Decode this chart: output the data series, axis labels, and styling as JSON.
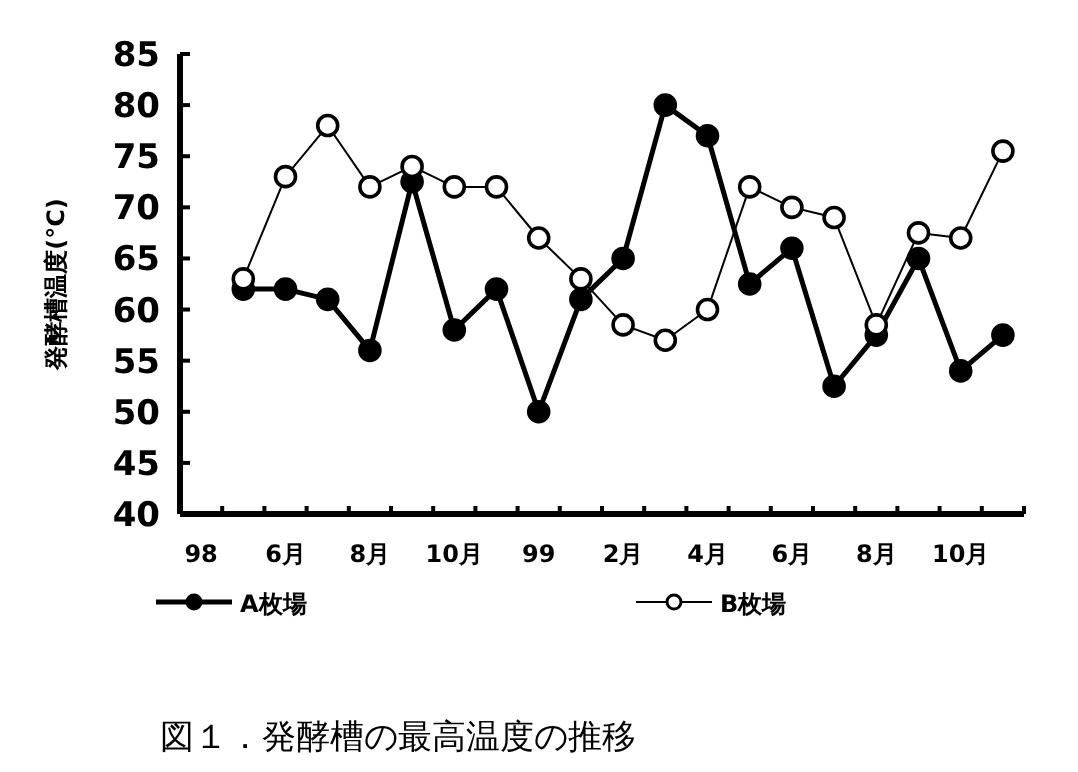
{
  "chart_data": {
    "type": "line",
    "title": "図１．発酵槽の最高温度の推移",
    "ylabel": "発酵槽温度(°C)",
    "categories": [
      "98",
      null,
      "6月",
      null,
      "8月",
      null,
      "10月",
      null,
      "99",
      null,
      "2月",
      null,
      "4月",
      null,
      "6月",
      null,
      "8月",
      null,
      "10月",
      null
    ],
    "series": [
      {
        "name": "A枚場",
        "color": "#000000",
        "values": [
          null,
          62,
          62,
          61,
          56,
          72.5,
          58,
          62,
          50,
          61,
          65,
          80,
          77,
          62.5,
          66,
          52.5,
          57.5,
          65,
          54,
          57.5
        ]
      },
      {
        "name": "B枚場",
        "color": "#000000",
        "values": [
          null,
          63,
          73,
          78,
          72,
          74,
          72,
          72,
          67,
          63,
          58.5,
          57,
          60,
          72,
          70,
          69,
          58.5,
          67.5,
          67,
          75.5
        ]
      }
    ],
    "ylim": [
      40,
      85
    ],
    "yticks": [
      40,
      45,
      50,
      55,
      60,
      65,
      70,
      75,
      80,
      85
    ],
    "grid": false,
    "legend": "bottom",
    "marker": "circle",
    "line_style": "solid"
  }
}
